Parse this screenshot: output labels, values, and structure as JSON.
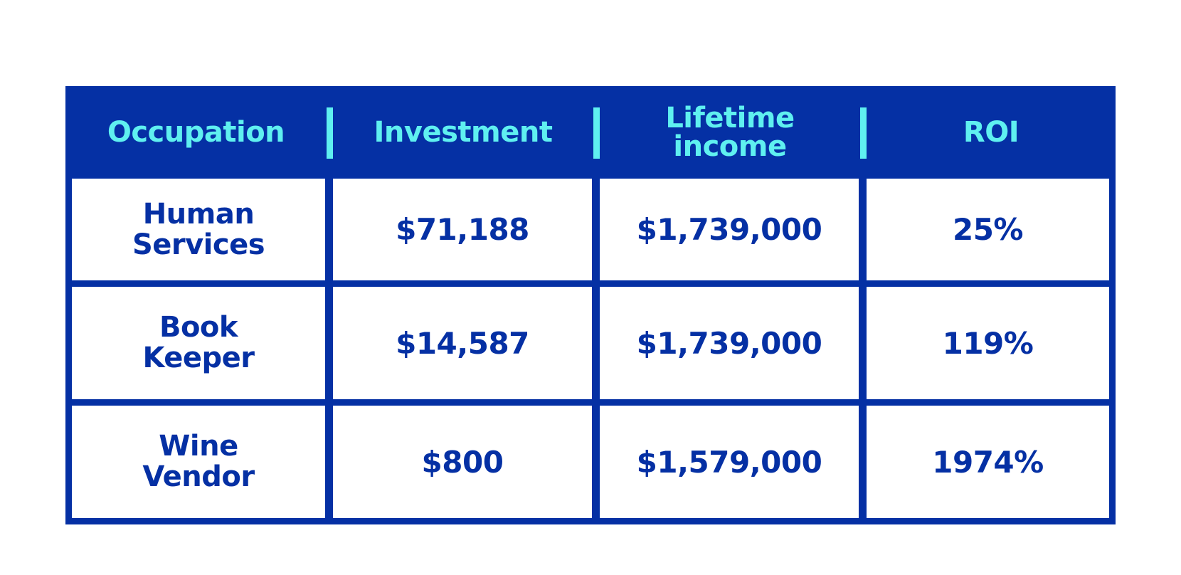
{
  "table": {
    "headers": [
      "Occupation",
      "Investment",
      "Lifetime\nincome",
      "ROI"
    ],
    "rows": [
      [
        "Human\nServices",
        "$71,188",
        "$1,739,000",
        "25%"
      ],
      [
        "Book\nKeeper",
        "$14,587",
        "$1,739,000",
        "119%"
      ],
      [
        "Wine\nVendor",
        "$800",
        "$1,579,000",
        "1974%"
      ]
    ]
  },
  "colors": {
    "frame": "#0530a4",
    "header_text": "#5ff0f0",
    "body_text": "#0530a4",
    "cell_background": "#ffffff"
  },
  "chart_data": {
    "type": "table",
    "columns": [
      "Occupation",
      "Investment",
      "Lifetime income",
      "ROI"
    ],
    "rows": [
      {
        "Occupation": "Human Services",
        "Investment": 71188,
        "Lifetime income": 1739000,
        "ROI": 25
      },
      {
        "Occupation": "Book Keeper",
        "Investment": 14587,
        "Lifetime income": 1739000,
        "ROI": 119
      },
      {
        "Occupation": "Wine Vendor",
        "Investment": 800,
        "Lifetime income": 1579000,
        "ROI": 1974
      }
    ]
  }
}
